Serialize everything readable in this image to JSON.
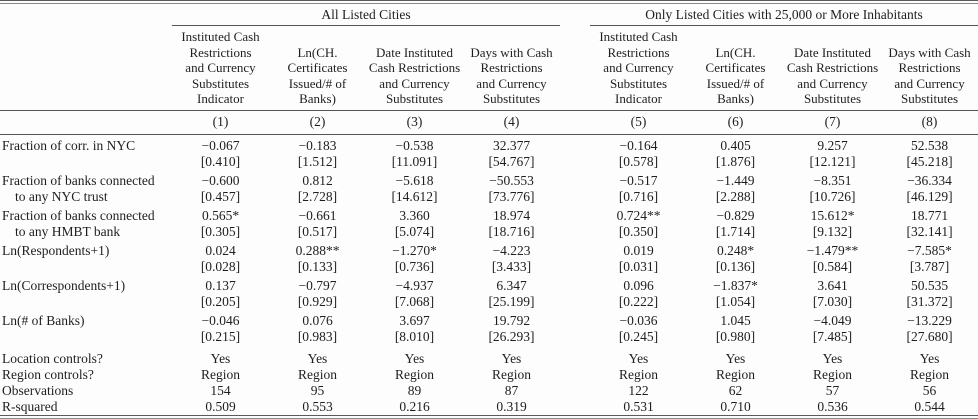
{
  "table": {
    "column_groups": [
      "All Listed Cities",
      "Only Listed Cities with 25,000 or More Inhabitants"
    ],
    "column_headers": [
      "Instituted Cash\nRestrictions\nand Currency\nSubstitutes\nIndicator",
      "Ln(CH.\nCertificates\nIssued/# of\nBanks)",
      "Date Instituted\nCash Restrictions\nand Currency\nSubstitutes",
      "Days with Cash\nRestrictions\nand Currency\nSubstitutes",
      "Instituted Cash\nRestrictions\nand Currency\nSubstitutes\nIndicator",
      "Ln(CH.\nCertificates\nIssued/# of\nBanks)",
      "Date Instituted\nCash Restrictions\nand Currency\nSubstitutes",
      "Days with Cash\nRestrictions\nand Currency\nSubstitutes"
    ],
    "column_numbers": [
      "(1)",
      "(2)",
      "(3)",
      "(4)",
      "(5)",
      "(6)",
      "(7)",
      "(8)"
    ],
    "rows": [
      {
        "label": "Fraction of corr. in NYC",
        "label_line2": "",
        "coefficients": [
          "−0.067",
          "−0.183",
          "−0.538",
          "32.377",
          "−0.164",
          "0.405",
          "9.257",
          "52.538"
        ],
        "std_errors": [
          "[0.410]",
          "[1.512]",
          "[11.091]",
          "[54.767]",
          "[0.578]",
          "[1.876]",
          "[12.121]",
          "[45.218]"
        ]
      },
      {
        "label": "Fraction of banks connected",
        "label_line2": "to any NYC trust",
        "coefficients": [
          "−0.600",
          "0.812",
          "−5.618",
          "−50.553",
          "−0.517",
          "−1.449",
          "−8.351",
          "−36.334"
        ],
        "std_errors": [
          "[0.457]",
          "[2.728]",
          "[14.612]",
          "[73.776]",
          "[0.716]",
          "[2.288]",
          "[10.726]",
          "[46.129]"
        ]
      },
      {
        "label": "Fraction of banks connected",
        "label_line2": "to any HMBT bank",
        "coefficients": [
          "0.565*",
          "−0.661",
          "3.360",
          "18.974",
          "0.724**",
          "−0.829",
          "15.612*",
          "18.771"
        ],
        "std_errors": [
          "[0.305]",
          "[0.517]",
          "[5.074]",
          "[18.716]",
          "[0.350]",
          "[1.714]",
          "[9.132]",
          "[32.141]"
        ]
      },
      {
        "label": "Ln(Respondents+1)",
        "label_line2": "",
        "coefficients": [
          "0.024",
          "0.288**",
          "−1.270*",
          "−4.223",
          "0.019",
          "0.248*",
          "−1.479**",
          "−7.585*"
        ],
        "std_errors": [
          "[0.028]",
          "[0.133]",
          "[0.736]",
          "[3.433]",
          "[0.031]",
          "[0.136]",
          "[0.584]",
          "[3.787]"
        ]
      },
      {
        "label": "Ln(Correspondents+1)",
        "label_line2": "",
        "coefficients": [
          "0.137",
          "−0.797",
          "−4.937",
          "6.347",
          "0.096",
          "−1.837*",
          "3.641",
          "50.535"
        ],
        "std_errors": [
          "[0.205]",
          "[0.929]",
          "[7.068]",
          "[25.199]",
          "[0.222]",
          "[1.054]",
          "[7.030]",
          "[31.372]"
        ]
      },
      {
        "label": "Ln(# of Banks)",
        "label_line2": "",
        "coefficients": [
          "−0.046",
          "0.076",
          "3.697",
          "19.792",
          "−0.036",
          "1.045",
          "−4.049",
          "−13.229"
        ],
        "std_errors": [
          "[0.215]",
          "[0.983]",
          "[8.010]",
          "[26.293]",
          "[0.245]",
          "[0.980]",
          "[7.485]",
          "[27.680]"
        ]
      }
    ],
    "footer_rows": [
      {
        "label": "Location controls?",
        "values": [
          "Yes",
          "Yes",
          "Yes",
          "Yes",
          "Yes",
          "Yes",
          "Yes",
          "Yes"
        ]
      },
      {
        "label": "Region controls?",
        "values": [
          "Region",
          "Region",
          "Region",
          "Region",
          "Region",
          "Region",
          "Region",
          "Region"
        ]
      },
      {
        "label": "Observations",
        "values": [
          "154",
          "95",
          "89",
          "87",
          "122",
          "62",
          "57",
          "56"
        ]
      },
      {
        "label": "R-squared",
        "values": [
          "0.509",
          "0.553",
          "0.216",
          "0.319",
          "0.531",
          "0.710",
          "0.536",
          "0.544"
        ]
      }
    ]
  }
}
